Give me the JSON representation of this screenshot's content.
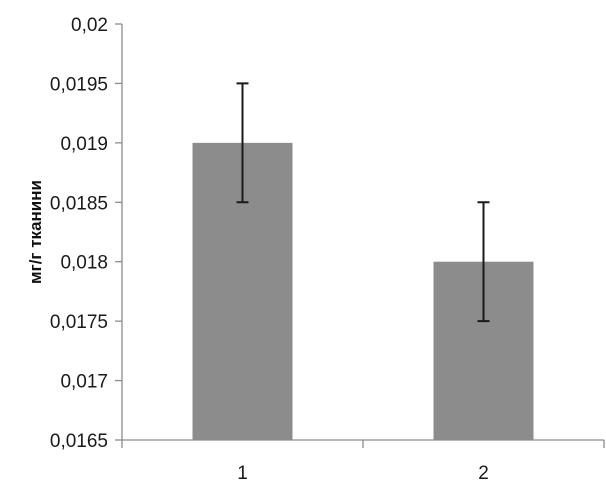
{
  "chart_data": {
    "type": "bar",
    "title": "",
    "xlabel": "",
    "ylabel": "мг/г тканини",
    "categories": [
      "1",
      "2"
    ],
    "series": [
      {
        "values": [
          0.019,
          0.018
        ],
        "error": [
          0.0005,
          0.0005
        ],
        "color": "#8c8c8c"
      }
    ],
    "ylim": [
      0.0165,
      0.02
    ],
    "yticks": [
      "0,0165",
      "0,017",
      "0,0175",
      "0,018",
      "0,0185",
      "0,019",
      "0,0195",
      "0,02"
    ],
    "grid": false,
    "legend": "none"
  }
}
